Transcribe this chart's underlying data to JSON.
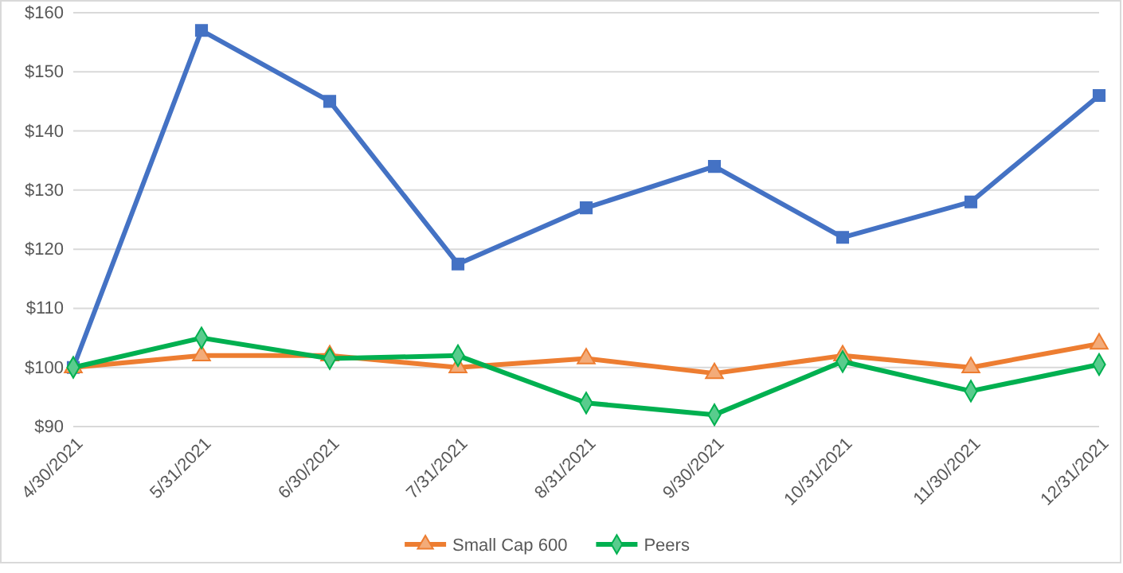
{
  "chart_data": {
    "type": "line",
    "categories": [
      "4/30/2021",
      "5/31/2021",
      "6/30/2021",
      "7/31/2021",
      "8/31/2021",
      "9/30/2021",
      "10/31/2021",
      "11/30/2021",
      "12/31/2021"
    ],
    "series": [
      {
        "color": "#4472c4",
        "marker": "square",
        "values": [
          100,
          157,
          145,
          117.5,
          127,
          134,
          122,
          128,
          146
        ]
      },
      {
        "name": "Small Cap 600",
        "color": "#ed7d31",
        "marker": "triangle",
        "values": [
          100,
          102,
          102,
          100,
          101.5,
          99,
          102,
          100,
          104
        ]
      },
      {
        "name": "Peers",
        "color": "#00b050",
        "marker": "diamond",
        "values": [
          100,
          105,
          101.5,
          102,
          94,
          92,
          101,
          96,
          100.5
        ]
      }
    ],
    "ylim": [
      90,
      160
    ],
    "yticks": [
      {
        "value": 90,
        "label": "$90"
      },
      {
        "value": 100,
        "label": "$100"
      },
      {
        "value": 110,
        "label": "$110"
      },
      {
        "value": 120,
        "label": "$120"
      },
      {
        "value": 130,
        "label": "$130"
      },
      {
        "value": 140,
        "label": "$140"
      },
      {
        "value": 150,
        "label": "$150"
      },
      {
        "value": 160,
        "label": "$160"
      }
    ],
    "grid": "y",
    "legend": "bottom",
    "line_style": "solid"
  }
}
